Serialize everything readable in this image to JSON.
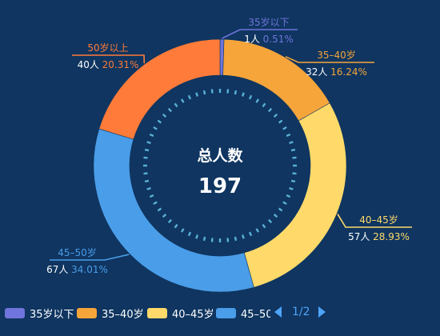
{
  "chart_data": {
    "type": "pie",
    "variant": "donut",
    "center": {
      "title": "总人数",
      "value": "197"
    },
    "unit": "人",
    "series": [
      {
        "name": "35岁以下",
        "value": 1,
        "percent": "0.51%",
        "color": "#6f75dc"
      },
      {
        "name": "35–40岁",
        "value": 32,
        "percent": "16.24%",
        "color": "#f6a53a"
      },
      {
        "name": "40–45岁",
        "value": 57,
        "percent": "28.93%",
        "color": "#ffda6a"
      },
      {
        "name": "45–50岁",
        "value": 67,
        "percent": "34.01%",
        "color": "#4a9de8"
      },
      {
        "name": "50岁以上",
        "value": 40,
        "percent": "20.31%",
        "color": "#ff7b39"
      }
    ],
    "legend": {
      "position": "bottom",
      "page": "1/2"
    }
  }
}
